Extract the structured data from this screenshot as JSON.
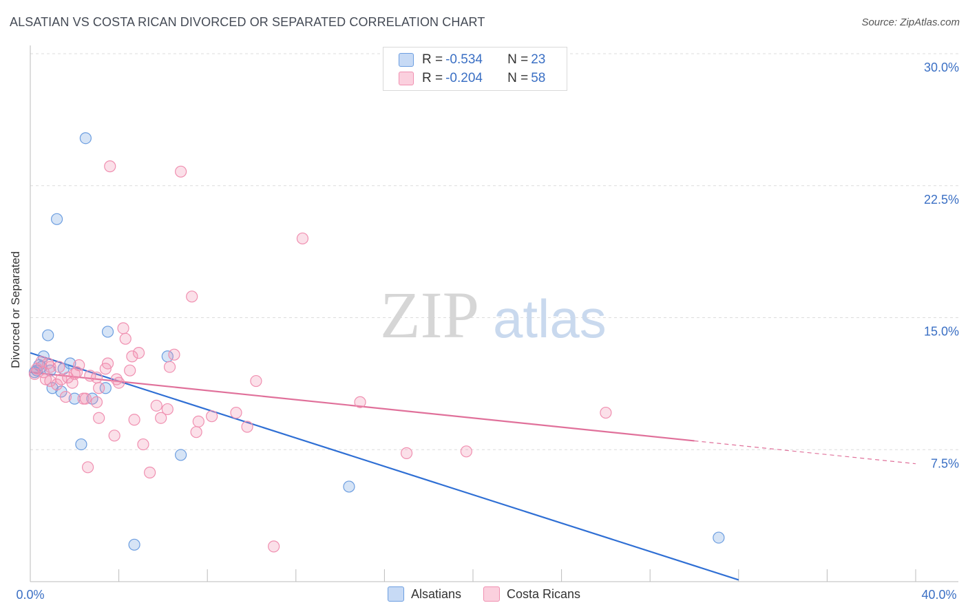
{
  "title": "ALSATIAN VS COSTA RICAN DIVORCED OR SEPARATED CORRELATION CHART",
  "source": "Source: ZipAtlas.com",
  "watermark": {
    "zip": "ZIP",
    "atlas": "atlas"
  },
  "legend": {
    "rows": [
      {
        "r_label": "R = ",
        "r_value": "-0.534",
        "n_label": "N = ",
        "n_value": "23"
      },
      {
        "r_label": "R = ",
        "r_value": "-0.204",
        "n_label": "N = ",
        "n_value": "58"
      }
    ]
  },
  "colors": {
    "alsatians": "#6b9de0",
    "costa_ricans": "#f08fb0",
    "alsatians_line": "#2f6fd4",
    "costa_ricans_line": "#e0709a",
    "tick_label": "#3a6fc4"
  },
  "chart_data": {
    "type": "scatter",
    "ylabel": "Divorced or Separated",
    "xlim": [
      0,
      40
    ],
    "ylim": [
      0,
      30
    ],
    "x_tick_labels": [
      "0.0%",
      "40.0%"
    ],
    "y_ticks": [
      7.5,
      15.0,
      22.5,
      30.0
    ],
    "y_tick_labels": [
      "7.5%",
      "15.0%",
      "22.5%",
      "30.0%"
    ],
    "grid": true,
    "legend_position": "bottom",
    "series": [
      {
        "name": "Alsatians",
        "color": "#6b9de0",
        "points": [
          [
            2.5,
            25.2
          ],
          [
            1.2,
            20.6
          ],
          [
            0.8,
            14.0
          ],
          [
            3.5,
            14.2
          ],
          [
            0.6,
            12.8
          ],
          [
            1.8,
            12.4
          ],
          [
            0.3,
            12.0
          ],
          [
            0.5,
            12.2
          ],
          [
            1.5,
            12.1
          ],
          [
            6.2,
            12.8
          ],
          [
            0.2,
            11.9
          ],
          [
            1.0,
            11.0
          ],
          [
            1.4,
            10.8
          ],
          [
            2.0,
            10.4
          ],
          [
            2.8,
            10.4
          ],
          [
            3.4,
            11.0
          ],
          [
            2.3,
            7.8
          ],
          [
            6.8,
            7.2
          ],
          [
            14.4,
            5.4
          ],
          [
            4.7,
            2.1
          ],
          [
            31.1,
            2.5
          ],
          [
            0.4,
            12.3
          ],
          [
            0.9,
            12.0
          ]
        ],
        "trend": {
          "x": [
            0,
            32
          ],
          "y": [
            13.0,
            0.1
          ]
        }
      },
      {
        "name": "Costa Ricans",
        "color": "#f08fb0",
        "points": [
          [
            3.6,
            23.6
          ],
          [
            6.8,
            23.3
          ],
          [
            12.3,
            19.5
          ],
          [
            7.3,
            16.2
          ],
          [
            4.2,
            14.4
          ],
          [
            4.3,
            13.8
          ],
          [
            4.9,
            13.0
          ],
          [
            4.6,
            12.8
          ],
          [
            6.5,
            12.9
          ],
          [
            3.5,
            12.4
          ],
          [
            2.2,
            12.3
          ],
          [
            0.8,
            12.4
          ],
          [
            0.5,
            12.5
          ],
          [
            1.3,
            12.2
          ],
          [
            6.3,
            12.2
          ],
          [
            3.4,
            12.1
          ],
          [
            4.5,
            12.0
          ],
          [
            2.0,
            11.8
          ],
          [
            0.6,
            11.9
          ],
          [
            1.7,
            11.6
          ],
          [
            2.7,
            11.7
          ],
          [
            3.9,
            11.5
          ],
          [
            1.4,
            11.5
          ],
          [
            0.9,
            11.4
          ],
          [
            3.0,
            11.6
          ],
          [
            10.2,
            11.4
          ],
          [
            4.0,
            11.3
          ],
          [
            1.2,
            11.2
          ],
          [
            3.1,
            11.0
          ],
          [
            0.7,
            11.5
          ],
          [
            1.6,
            10.5
          ],
          [
            2.4,
            10.4
          ],
          [
            3.0,
            10.2
          ],
          [
            14.9,
            10.2
          ],
          [
            5.7,
            10.0
          ],
          [
            6.2,
            9.8
          ],
          [
            9.3,
            9.6
          ],
          [
            8.2,
            9.4
          ],
          [
            26.0,
            9.6
          ],
          [
            5.9,
            9.3
          ],
          [
            3.1,
            9.3
          ],
          [
            4.7,
            9.2
          ],
          [
            7.6,
            9.1
          ],
          [
            9.8,
            8.8
          ],
          [
            7.5,
            8.5
          ],
          [
            3.8,
            8.3
          ],
          [
            5.1,
            7.8
          ],
          [
            17.0,
            7.3
          ],
          [
            19.7,
            7.4
          ],
          [
            2.6,
            6.5
          ],
          [
            5.4,
            6.2
          ],
          [
            11.0,
            2.0
          ],
          [
            0.2,
            11.8
          ],
          [
            0.3,
            12.1
          ],
          [
            0.9,
            12.2
          ],
          [
            2.1,
            11.9
          ],
          [
            1.9,
            11.3
          ],
          [
            2.5,
            10.4
          ]
        ],
        "trend": {
          "x": [
            0,
            30
          ],
          "y": [
            11.9,
            8.0
          ]
        },
        "trend_dashed": {
          "x": [
            30,
            40
          ],
          "y": [
            8.0,
            6.7
          ]
        }
      }
    ]
  }
}
